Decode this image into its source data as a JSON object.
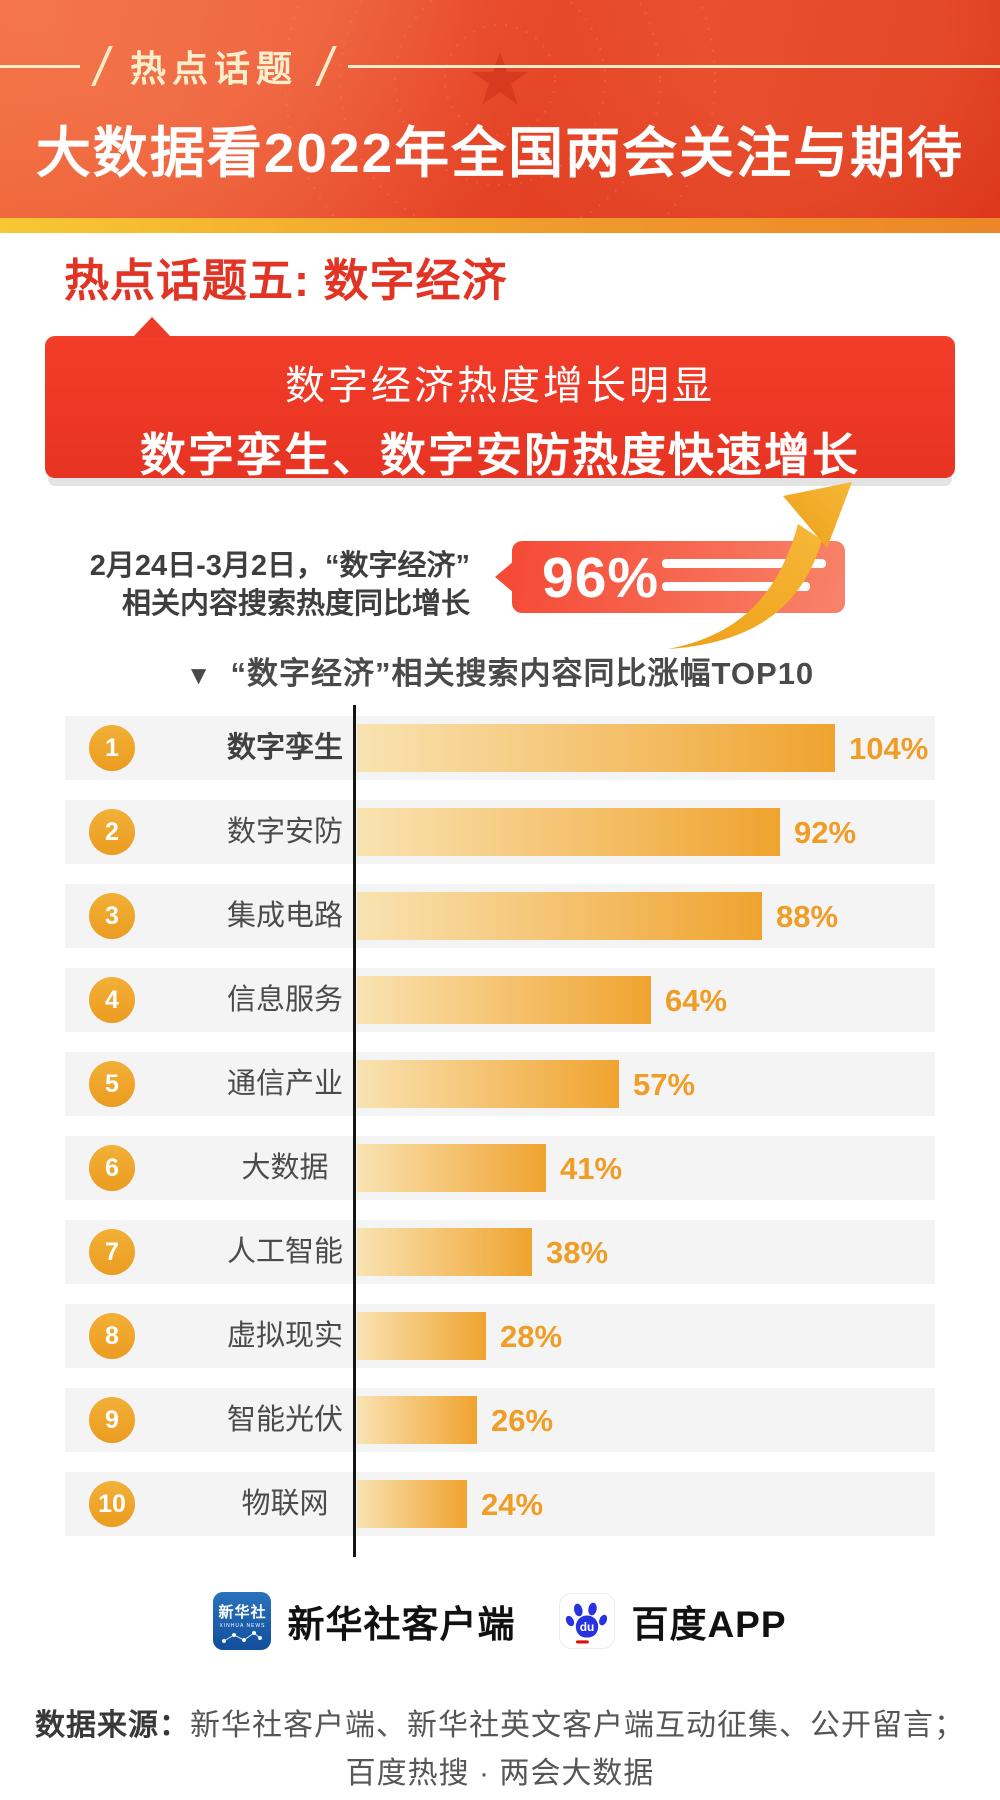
{
  "banner": {
    "tag": "热点话题",
    "title": "大数据看2022年全国两会关注与期待"
  },
  "section": {
    "title": "热点话题五: 数字经济"
  },
  "callout": {
    "line1": "数字经济热度增长明显",
    "line2": "数字孪生、数字安防热度快速增长"
  },
  "growth": {
    "desc_line1": "2月24日-3月2日，“数字经济”",
    "desc_line2": "相关内容搜索热度同比增长",
    "value": "96%"
  },
  "chart_header": {
    "marker": "▼",
    "title": "“数字经济”相关搜索内容同比涨幅TOP10"
  },
  "chart_data": {
    "type": "bar",
    "orientation": "horizontal",
    "title": "“数字经济”相关搜索内容同比涨幅TOP10",
    "categories": [
      "数字孪生",
      "数字安防",
      "集成电路",
      "信息服务",
      "通信产业",
      "大数据",
      "人工智能",
      "虚拟现实",
      "智能光伏",
      "物联网"
    ],
    "values": [
      104,
      92,
      88,
      64,
      57,
      41,
      38,
      28,
      26,
      24
    ],
    "ranks": [
      1,
      2,
      3,
      4,
      5,
      6,
      7,
      8,
      9,
      10
    ],
    "unit": "%",
    "xlim": [
      0,
      110
    ],
    "grid": false,
    "bar_gradient": [
      "#f9e3b2",
      "#f0a32f"
    ],
    "value_label_color": "#ef9d26"
  },
  "footer": {
    "logos": [
      {
        "icon": "xinhua-logo-icon",
        "icon_cn": "新华社",
        "icon_en": "XINHUA NEWS",
        "label": "新华社客户端"
      },
      {
        "icon": "baidu-paw-icon",
        "icon_du": "du",
        "label": "百度APP"
      }
    ],
    "source_label": "数据来源：",
    "source_line1": "新华社客户端、新华社英文客户端互动征集、公开留言；",
    "source_line2": "百度热搜 · 两会大数据"
  },
  "colors": {
    "banner_red": "#e64527",
    "gold_strip": "#f0a32c",
    "section_red": "#e23424",
    "callout_red": "#ee3a27",
    "badge_red": "#f54a36",
    "arrow_gold": "#f0a324",
    "bar_orange": "#f0a32f",
    "rank_gold": "#eda42b",
    "row_bg": "#f4f4f5",
    "text_dark": "#3e3e3e"
  }
}
